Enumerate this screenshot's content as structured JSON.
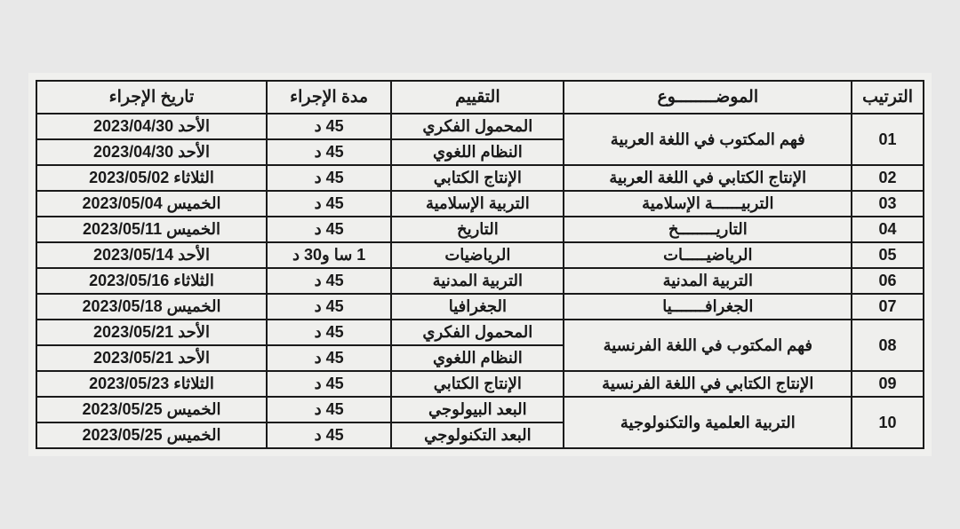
{
  "headers": {
    "order": "الترتيب",
    "subject": "الموضــــــــوع",
    "evaluation": "التقييم",
    "duration": "مدة الإجراء",
    "date": "تاريخ الإجراء"
  },
  "rows": [
    {
      "order": "01",
      "subject": "فهم المكتوب في اللغة العربية",
      "rowspan": 2,
      "evals": [
        {
          "name": "المحمول الفكري",
          "duration": "45 د",
          "date": "الأحد 2023/04/30"
        },
        {
          "name": "النظام اللغوي",
          "duration": "45 د",
          "date": "الأحد 2023/04/30"
        }
      ]
    },
    {
      "order": "02",
      "subject": "الإنتاج الكتابي في اللغة العربية",
      "rowspan": 1,
      "evals": [
        {
          "name": "الإنتاج الكتابي",
          "duration": "45 د",
          "date": "الثلاثاء 2023/05/02"
        }
      ]
    },
    {
      "order": "03",
      "subject": "التربيــــــة الإسلامية",
      "rowspan": 1,
      "evals": [
        {
          "name": "التربية الإسلامية",
          "duration": "45 د",
          "date": "الخميس 2023/05/04"
        }
      ]
    },
    {
      "order": "04",
      "subject": "التاريــــــــخ",
      "rowspan": 1,
      "evals": [
        {
          "name": "التاريخ",
          "duration": "45 د",
          "date": "الخميس 2023/05/11"
        }
      ]
    },
    {
      "order": "05",
      "subject": "الرياضيـــــات",
      "rowspan": 1,
      "evals": [
        {
          "name": "الرياضيات",
          "duration": "1 سا و30 د",
          "date": "الأحد 2023/05/14"
        }
      ]
    },
    {
      "order": "06",
      "subject": "التربية المدنية",
      "rowspan": 1,
      "evals": [
        {
          "name": "التربية المدنية",
          "duration": "45 د",
          "date": "الثلاثاء 2023/05/16"
        }
      ]
    },
    {
      "order": "07",
      "subject": "الجغرافـــــــيا",
      "rowspan": 1,
      "evals": [
        {
          "name": "الجغرافيا",
          "duration": "45 د",
          "date": "الخميس 2023/05/18"
        }
      ]
    },
    {
      "order": "08",
      "subject": "فهم المكتوب في اللغة الفرنسية",
      "rowspan": 2,
      "evals": [
        {
          "name": "المحمول الفكري",
          "duration": "45 د",
          "date": "الأحد 2023/05/21"
        },
        {
          "name": "النظام اللغوي",
          "duration": "45 د",
          "date": "الأحد 2023/05/21"
        }
      ]
    },
    {
      "order": "09",
      "subject": "الإنتاج الكتابي في اللغة الفرنسية",
      "rowspan": 1,
      "evals": [
        {
          "name": "الإنتاج الكتابي",
          "duration": "45 د",
          "date": "الثلاثاء 2023/05/23"
        }
      ]
    },
    {
      "order": "10",
      "subject": "التربية العلمية والتكنولوجية",
      "rowspan": 2,
      "evals": [
        {
          "name": "البعد البيولوجي",
          "duration": "45 د",
          "date": "الخميس 2023/05/25"
        },
        {
          "name": "البعد التكنولوجي",
          "duration": "45 د",
          "date": "الخميس 2023/05/25"
        }
      ]
    }
  ]
}
